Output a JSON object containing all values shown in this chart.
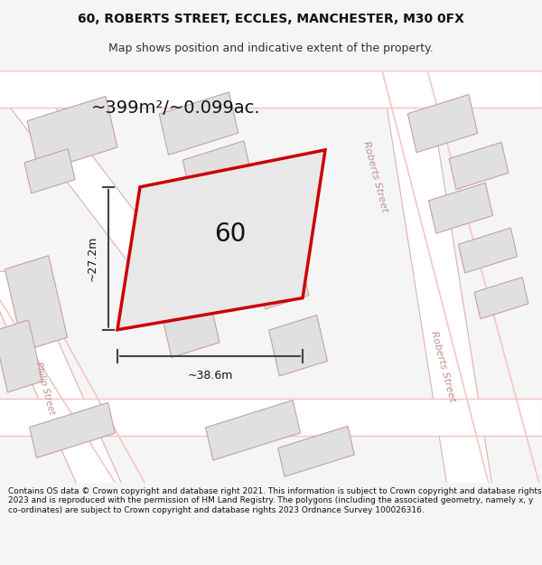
{
  "title_line1": "60, ROBERTS STREET, ECCLES, MANCHESTER, M30 0FX",
  "title_line2": "Map shows position and indicative extent of the property.",
  "area_text": "~399m²/~0.099ac.",
  "width_label": "~38.6m",
  "height_label": "~27.2m",
  "property_number": "60",
  "footer_text": "Contains OS data © Crown copyright and database right 2021. This information is subject to Crown copyright and database rights 2023 and is reproduced with the permission of HM Land Registry. The polygons (including the associated geometry, namely x, y co-ordinates) are subject to Crown copyright and database rights 2023 Ordnance Survey 100026316.",
  "bg_color": "#f5f5f5",
  "map_bg": "#f0f0f0",
  "road_color": "#ffffff",
  "building_fill": "#e8e8e8",
  "building_stroke": "#d0a0a0",
  "highlight_fill": "#e8e8e8",
  "highlight_stroke": "#cc0000",
  "dim_line_color": "#444444",
  "street_label_color": "#c08080",
  "footer_bg": "#ffffff",
  "title_bg": "#ffffff"
}
